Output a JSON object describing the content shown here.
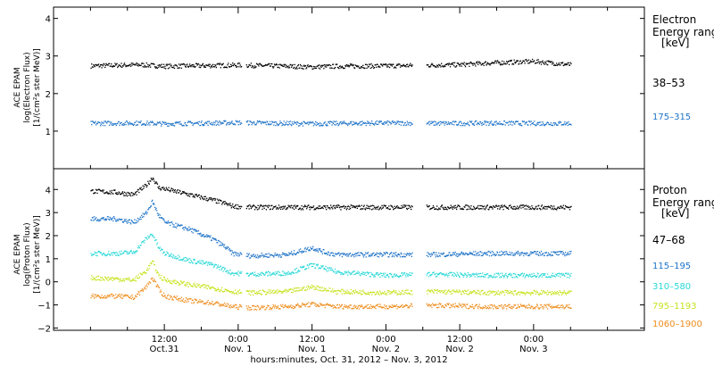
{
  "chart_data": [
    {
      "type": "scatter",
      "panel": "electron",
      "ylabel_lines": [
        "ACE EPAM",
        "log(Electron Flux)",
        "[1/(cm²s ster MeV)]"
      ],
      "ylim": [
        0,
        4.3
      ],
      "yticks": [
        1,
        2,
        3,
        4
      ],
      "legend_title": [
        "Electron",
        "Energy ranges",
        "[keV]"
      ],
      "series": [
        {
          "name": "38–53",
          "color": "#000000",
          "x": [
            -12,
            -4,
            0,
            4,
            12,
            20,
            24,
            28,
            36,
            44,
            48,
            52,
            60,
            66
          ],
          "y": [
            2.75,
            2.78,
            2.74,
            2.75,
            2.77,
            2.74,
            2.72,
            2.74,
            2.75,
            2.77,
            2.78,
            2.82,
            2.87,
            2.78
          ]
        },
        {
          "name": "175–315",
          "color": "#1e73c8",
          "x": [
            -12,
            -4,
            0,
            4,
            12,
            20,
            24,
            28,
            36,
            44,
            48,
            52,
            60,
            66
          ],
          "y": [
            1.22,
            1.23,
            1.21,
            1.22,
            1.24,
            1.22,
            1.21,
            1.22,
            1.23,
            1.22,
            1.22,
            1.23,
            1.22,
            1.22
          ]
        }
      ]
    },
    {
      "type": "scatter",
      "panel": "proton",
      "ylabel_lines": [
        "ACE EPAM",
        "log(Proton Flux)",
        "[1/(cm²s ster MeV)]"
      ],
      "ylim": [
        -2.1,
        4.9
      ],
      "yticks": [
        -2,
        -1,
        0,
        1,
        2,
        3,
        4
      ],
      "legend_title": [
        "Proton",
        "Energy ranges",
        "[keV]"
      ],
      "series": [
        {
          "name": "47–68",
          "color": "#000000",
          "x": [
            -12,
            -8,
            -5,
            -3,
            -2,
            -1,
            0,
            4,
            8,
            10,
            11,
            14,
            20,
            28,
            36,
            44,
            52,
            60,
            66
          ],
          "y": [
            3.95,
            3.9,
            3.8,
            4.2,
            4.55,
            4.1,
            4.05,
            3.8,
            3.55,
            3.4,
            3.3,
            3.25,
            3.25,
            3.25,
            3.25,
            3.25,
            3.25,
            3.25,
            3.25
          ]
        },
        {
          "name": "115–195",
          "color": "#1e73c8",
          "x": [
            -12,
            -8,
            -5,
            -3,
            -2,
            -1,
            0,
            4,
            8,
            10,
            11,
            14,
            20,
            24,
            26,
            28,
            36,
            44,
            52,
            60,
            66
          ],
          "y": [
            2.75,
            2.75,
            2.6,
            3.0,
            3.5,
            2.9,
            2.6,
            2.3,
            1.85,
            1.5,
            1.25,
            1.15,
            1.2,
            1.5,
            1.3,
            1.2,
            1.2,
            1.2,
            1.25,
            1.25,
            1.25
          ]
        },
        {
          "name": "310–580",
          "color": "#2ad8d8",
          "x": [
            -12,
            -8,
            -5,
            -3,
            -2,
            -1,
            0,
            4,
            8,
            11,
            14,
            20,
            24,
            28,
            36,
            44,
            52,
            60,
            66
          ],
          "y": [
            1.25,
            1.25,
            1.3,
            1.9,
            2.1,
            1.5,
            1.25,
            0.95,
            0.75,
            0.4,
            0.35,
            0.4,
            0.75,
            0.45,
            0.3,
            0.35,
            0.3,
            0.3,
            0.3
          ]
        },
        {
          "name": "795–1193",
          "color": "#c7e31f",
          "x": [
            -12,
            -8,
            -5,
            -3,
            -2,
            -1,
            0,
            4,
            8,
            11,
            14,
            20,
            24,
            28,
            36,
            44,
            52,
            60,
            66
          ],
          "y": [
            0.2,
            0.15,
            0.1,
            0.5,
            0.9,
            0.3,
            0.1,
            -0.1,
            -0.25,
            -0.4,
            -0.45,
            -0.4,
            -0.2,
            -0.4,
            -0.45,
            -0.4,
            -0.45,
            -0.45,
            -0.45
          ]
        },
        {
          "name": "1060–1900",
          "color": "#ee8e1f",
          "x": [
            -12,
            -8,
            -5,
            -3,
            -2,
            -1,
            0,
            4,
            8,
            11,
            14,
            20,
            24,
            28,
            36,
            44,
            52,
            60,
            66
          ],
          "y": [
            -0.6,
            -0.6,
            -0.65,
            -0.2,
            0.2,
            -0.3,
            -0.6,
            -0.8,
            -0.9,
            -1.05,
            -1.1,
            -1.05,
            -0.95,
            -1.05,
            -1.05,
            -1.0,
            -1.05,
            -1.05,
            -1.05
          ]
        }
      ]
    }
  ],
  "x_axis": {
    "xlim": [
      -18,
      78
    ],
    "major_ticks": [
      {
        "x": 0,
        "time": "12:00",
        "date": "Oct.31"
      },
      {
        "x": 12,
        "time": "0:00",
        "date": "Nov. 1"
      },
      {
        "x": 24,
        "time": "12:00",
        "date": "Nov. 1"
      },
      {
        "x": 36,
        "time": "0:00",
        "date": "Nov. 2"
      },
      {
        "x": 48,
        "time": "12:00",
        "date": "Nov. 2"
      },
      {
        "x": 60,
        "time": "0:00",
        "date": "Nov. 3"
      }
    ],
    "xlabel": "hours:minutes, Oct. 31, 2012 – Nov.  3, 2012"
  }
}
